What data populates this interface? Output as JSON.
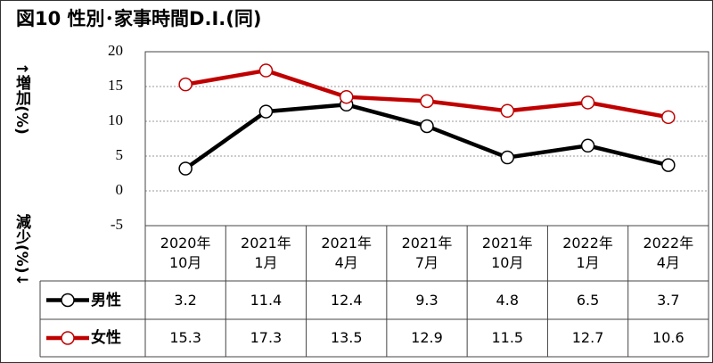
{
  "chart_data": {
    "type": "line",
    "title": "図10 性別･家事時間D.I.(同)",
    "y_label_up": "↑増加(%)",
    "y_label_down": "減少(%)↓",
    "categories": [
      "2020年\n10月",
      "2021年\n1月",
      "2021年\n4月",
      "2021年\n7月",
      "2021年\n10月",
      "2022年\n1月",
      "2022年\n4月"
    ],
    "series": [
      {
        "name": "男性",
        "color": "#000000",
        "values": [
          3.2,
          11.4,
          12.4,
          9.3,
          4.8,
          6.5,
          3.7
        ]
      },
      {
        "name": "女性",
        "color": "#c00000",
        "values": [
          15.3,
          17.3,
          13.5,
          12.9,
          11.5,
          12.7,
          10.6
        ]
      }
    ],
    "ylim": [
      -5,
      20
    ],
    "yticks": [
      -5,
      0,
      5,
      10,
      15,
      20
    ],
    "grid": true
  }
}
